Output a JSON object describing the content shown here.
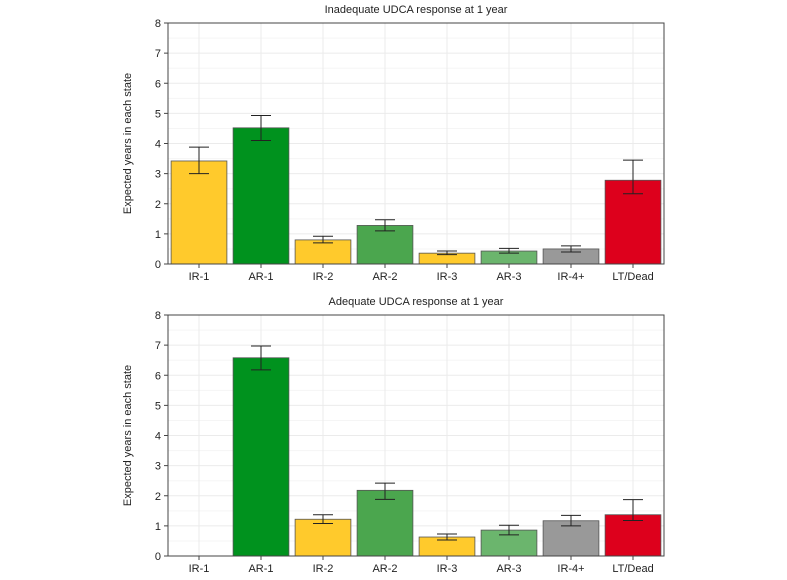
{
  "chart_data": [
    {
      "type": "bar",
      "title": "Inadequate UDCA response at 1 year",
      "ylabel": "Expected years in each state",
      "xlabel": "",
      "ylim": [
        0,
        8
      ],
      "yticks": [
        0,
        1,
        2,
        3,
        4,
        5,
        6,
        7,
        8
      ],
      "categories": [
        "IR-1",
        "AR-1",
        "IR-2",
        "AR-2",
        "IR-3",
        "AR-3",
        "IR-4+",
        "LT/Dead"
      ],
      "values": [
        3.42,
        4.52,
        0.8,
        1.28,
        0.36,
        0.43,
        0.5,
        2.78
      ],
      "error_low": [
        3.0,
        4.1,
        0.7,
        1.1,
        0.31,
        0.36,
        0.4,
        2.33
      ],
      "error_high": [
        3.88,
        4.93,
        0.92,
        1.47,
        0.43,
        0.52,
        0.6,
        3.45
      ],
      "colors": [
        "#FFCA2C",
        "#00921E",
        "#FFCA2C",
        "#4BA64E",
        "#FFCA2C",
        "#6BB56D",
        "#999999",
        "#DD001C"
      ],
      "grid": true
    },
    {
      "type": "bar",
      "title": "Adequate UDCA response at 1 year",
      "ylabel": "Expected years in each state",
      "xlabel": "",
      "ylim": [
        0,
        8
      ],
      "yticks": [
        0,
        1,
        2,
        3,
        4,
        5,
        6,
        7,
        8
      ],
      "categories": [
        "IR-1",
        "AR-1",
        "IR-2",
        "AR-2",
        "IR-3",
        "AR-3",
        "IR-4+",
        "LT/Dead"
      ],
      "values": [
        0,
        6.58,
        1.22,
        2.18,
        0.63,
        0.86,
        1.17,
        1.37
      ],
      "error_low": [
        null,
        6.18,
        1.08,
        1.88,
        0.53,
        0.7,
        1.0,
        1.18
      ],
      "error_high": [
        null,
        6.97,
        1.37,
        2.42,
        0.73,
        1.02,
        1.35,
        1.87
      ],
      "colors": [
        "#FFCA2C",
        "#00921E",
        "#FFCA2C",
        "#4BA64E",
        "#FFCA2C",
        "#6BB56D",
        "#999999",
        "#DD001C"
      ],
      "grid": true
    }
  ]
}
